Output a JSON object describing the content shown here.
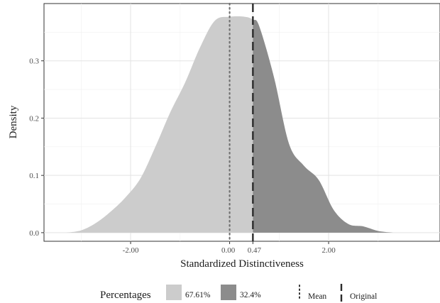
{
  "chart_data": {
    "type": "area",
    "xlabel": "Standardized Distinctiveness",
    "ylabel": "Density",
    "xlim": [
      -3.75,
      4.25
    ],
    "ylim": [
      -0.015,
      0.4
    ],
    "x_ticks": [
      -2.0,
      0.0,
      0.47,
      2.0
    ],
    "x_tick_labels": [
      "-2.00",
      "0.00",
      "0.47",
      "2.00"
    ],
    "y_ticks": [
      0.0,
      0.1,
      0.2,
      0.3
    ],
    "y_tick_labels": [
      "0.0",
      "0.1",
      "0.2",
      "0.3"
    ],
    "grid": true,
    "mean": 0.0,
    "original": 0.47,
    "density": {
      "x": [
        -3.3,
        -3.0,
        -2.7,
        -2.4,
        -2.1,
        -1.8,
        -1.5,
        -1.2,
        -0.9,
        -0.6,
        -0.3,
        0.0,
        0.3,
        0.47,
        0.6,
        0.9,
        1.2,
        1.5,
        1.8,
        2.1,
        2.4,
        2.7,
        3.0,
        3.3
      ],
      "y": [
        0.0,
        0.004,
        0.017,
        0.037,
        0.062,
        0.095,
        0.15,
        0.21,
        0.262,
        0.323,
        0.37,
        0.377,
        0.377,
        0.372,
        0.36,
        0.27,
        0.155,
        0.117,
        0.092,
        0.04,
        0.015,
        0.011,
        0.003,
        0.0
      ]
    },
    "series": [
      {
        "name": "67.61%",
        "color": "#cccccc",
        "range": "x < 0.47"
      },
      {
        "name": "32.4%",
        "color": "#8c8c8c",
        "range": "x >= 0.47"
      }
    ]
  },
  "legend": {
    "title": "Percentages",
    "fill_items": [
      {
        "label": "67.61%",
        "color": "#cccccc"
      },
      {
        "label": "32.4%",
        "color": "#8c8c8c"
      }
    ],
    "line_items": [
      {
        "label": "Mean",
        "linetype": "dotted"
      },
      {
        "label": "Original",
        "linetype": "dashed"
      }
    ]
  }
}
